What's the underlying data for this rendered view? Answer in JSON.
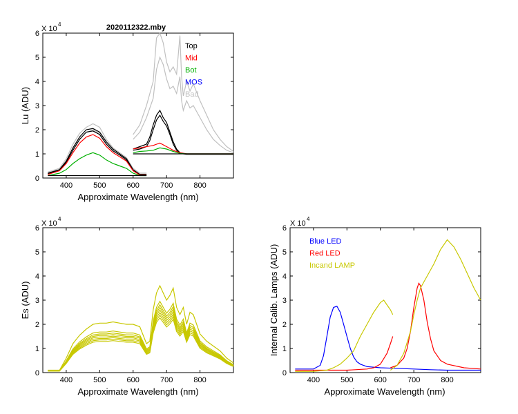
{
  "figure": {
    "title": "2020112322.mby",
    "scale_label": "X 10",
    "scale_exponent": "4"
  },
  "chart_data": [
    {
      "id": "lu",
      "type": "line",
      "xlabel": "Approximate Wavelength (nm)",
      "ylabel": "Lu (ADU)",
      "xlim": [
        330,
        900
      ],
      "ylim": [
        0,
        6
      ],
      "xticks": [
        "400",
        "500",
        "600",
        "700",
        "800"
      ],
      "xtick_values": [
        400,
        500,
        600,
        700,
        800
      ],
      "yticks": [
        "0",
        "1",
        "2",
        "3",
        "4",
        "5",
        "6"
      ],
      "legend": [
        {
          "label": "Top",
          "color": "#000000"
        },
        {
          "label": "Mid",
          "color": "#ff0000"
        },
        {
          "label": "Bot",
          "color": "#00b000"
        },
        {
          "label": "MOS",
          "color": "#0000ff"
        },
        {
          "label": "Bad",
          "color": "#c0c0c0"
        }
      ],
      "series": [
        {
          "name": "Bad",
          "color": "#c0c0c0",
          "seg1": {
            "x": [
              345,
              380,
              400,
              420,
              440,
              460,
              480,
              500,
              520,
              540,
              560,
              580,
              600,
              620,
              640
            ],
            "y": [
              0.25,
              0.4,
              0.8,
              1.4,
              1.85,
              2.1,
              2.25,
              2.1,
              1.6,
              1.25,
              1.05,
              0.85,
              0.4,
              0.2,
              0.2
            ]
          },
          "seg2": {
            "x": [
              600,
              620,
              640,
              660,
              670,
              680,
              690,
              700,
              710,
              720,
              730,
              740,
              745,
              750,
              760,
              770,
              780,
              800,
              820,
              840,
              860,
              880,
              900
            ],
            "y": [
              1.8,
              2.2,
              3.0,
              4.0,
              5.8,
              6.0,
              5.6,
              4.8,
              4.4,
              4.6,
              4.3,
              5.9,
              4.2,
              3.4,
              4.0,
              3.6,
              3.9,
              3.2,
              2.6,
              2.0,
              1.6,
              1.3,
              1.1
            ]
          }
        },
        {
          "name": "Bad",
          "color": "#c0c0c0",
          "seg1": {
            "x": [
              345,
              380,
              400,
              420,
              440,
              460,
              480,
              500,
              520,
              540,
              560,
              580,
              600,
              620,
              640
            ],
            "y": [
              0.22,
              0.35,
              0.7,
              1.2,
              1.6,
              1.9,
              2.0,
              1.85,
              1.45,
              1.15,
              0.95,
              0.75,
              0.35,
              0.2,
              0.2
            ]
          },
          "seg2": {
            "x": [
              600,
              620,
              640,
              660,
              670,
              680,
              690,
              700,
              710,
              720,
              730,
              740,
              745,
              750,
              760,
              770,
              780,
              800,
              820,
              840,
              860,
              880,
              900
            ],
            "y": [
              1.6,
              1.9,
              2.5,
              3.3,
              4.5,
              5.0,
              4.7,
              4.1,
              3.7,
              3.8,
              3.5,
              4.2,
              3.2,
              2.8,
              3.2,
              2.9,
              3.0,
              2.5,
              2.0,
              1.6,
              1.35,
              1.15,
              1.05
            ]
          }
        },
        {
          "name": "Top",
          "color": "#000000",
          "seg1": {
            "x": [
              345,
              380,
              400,
              420,
              440,
              460,
              480,
              500,
              520,
              540,
              560,
              580,
              600,
              620,
              640
            ],
            "y": [
              0.2,
              0.35,
              0.7,
              1.25,
              1.7,
              2.0,
              2.05,
              1.9,
              1.5,
              1.2,
              1.0,
              0.8,
              0.35,
              0.15,
              0.15
            ]
          },
          "seg2": {
            "x": [
              600,
              620,
              640,
              650,
              660,
              670,
              680,
              690,
              700,
              710,
              720,
              730,
              740,
              760,
              780,
              800,
              820,
              840,
              860,
              880,
              900
            ],
            "y": [
              1.2,
              1.3,
              1.4,
              1.7,
              2.2,
              2.6,
              2.8,
              2.5,
              2.3,
              1.9,
              1.5,
              1.2,
              1.05,
              1.0,
              1.0,
              1.0,
              1.0,
              1.0,
              1.0,
              1.0,
              1.0
            ]
          }
        },
        {
          "name": "Top",
          "color": "#000000",
          "seg1": {
            "x": [
              345,
              380,
              400,
              420,
              440,
              460,
              480,
              500,
              520,
              540,
              560,
              580,
              600,
              620,
              640
            ],
            "y": [
              0.18,
              0.32,
              0.65,
              1.15,
              1.6,
              1.9,
              1.95,
              1.8,
              1.4,
              1.12,
              0.95,
              0.75,
              0.32,
              0.15,
              0.15
            ]
          },
          "seg2": {
            "x": [
              600,
              620,
              640,
              650,
              660,
              670,
              680,
              690,
              700,
              710,
              720,
              730,
              740,
              760,
              780,
              800,
              820,
              840,
              860,
              880,
              900
            ],
            "y": [
              1.15,
              1.2,
              1.3,
              1.55,
              2.0,
              2.4,
              2.6,
              2.35,
              2.15,
              1.8,
              1.4,
              1.15,
              1.02,
              0.98,
              0.98,
              0.98,
              0.98,
              0.98,
              0.98,
              0.98,
              0.98
            ]
          }
        },
        {
          "name": "Mid",
          "color": "#ff0000",
          "seg1": {
            "x": [
              345,
              380,
              400,
              420,
              440,
              460,
              480,
              500,
              520,
              540,
              560,
              580,
              600,
              620,
              640
            ],
            "y": [
              0.15,
              0.3,
              0.6,
              1.05,
              1.45,
              1.7,
              1.8,
              1.65,
              1.3,
              1.05,
              0.88,
              0.7,
              0.3,
              0.12,
              0.12
            ]
          },
          "seg2": {
            "x": [
              600,
              620,
              640,
              660,
              680,
              700,
              720,
              740,
              760,
              780,
              800,
              820,
              840,
              860,
              880,
              900
            ],
            "y": [
              1.2,
              1.25,
              1.3,
              1.35,
              1.45,
              1.3,
              1.15,
              1.05,
              1.0,
              1.0,
              1.0,
              1.0,
              1.0,
              1.0,
              1.0,
              1.0
            ]
          }
        },
        {
          "name": "Bot",
          "color": "#00b000",
          "seg1": {
            "x": [
              345,
              380,
              400,
              420,
              440,
              460,
              480,
              500,
              520,
              540,
              560,
              580,
              600,
              620,
              640
            ],
            "y": [
              0.1,
              0.2,
              0.35,
              0.6,
              0.8,
              0.95,
              1.05,
              0.95,
              0.75,
              0.6,
              0.5,
              0.4,
              0.2,
              0.1,
              0.1
            ]
          },
          "seg2": {
            "x": [
              600,
              620,
              640,
              660,
              680,
              700,
              720,
              740,
              760,
              780,
              800,
              820,
              840,
              860,
              880,
              900
            ],
            "y": [
              1.05,
              1.1,
              1.12,
              1.15,
              1.25,
              1.2,
              1.1,
              1.02,
              1.0,
              1.0,
              1.0,
              1.0,
              1.0,
              1.0,
              1.0,
              1.0
            ]
          }
        },
        {
          "name": "Baseline",
          "color": "#000000",
          "seg1": {
            "x": [
              345,
              640
            ],
            "y": [
              0.1,
              0.1
            ]
          },
          "seg2": {
            "x": [
              600,
              900
            ],
            "y": [
              1.0,
              1.0
            ]
          }
        }
      ]
    },
    {
      "id": "es",
      "type": "line",
      "xlabel": "Approximate Wavelength (nm)",
      "ylabel": "Es  (ADU)",
      "xlim": [
        330,
        900
      ],
      "ylim": [
        0,
        6
      ],
      "xticks": [
        "400",
        "500",
        "600",
        "700",
        "800"
      ],
      "xtick_values": [
        400,
        500,
        600,
        700,
        800
      ],
      "yticks": [
        "0",
        "1",
        "2",
        "3",
        "4",
        "5",
        "6"
      ],
      "series": [
        {
          "name": "Es",
          "color": "#c8c800",
          "x": [
            345,
            380,
            400,
            420,
            440,
            460,
            480,
            500,
            520,
            540,
            560,
            580,
            600,
            620,
            640,
            650,
            660,
            670,
            680,
            690,
            700,
            710,
            720,
            730,
            740,
            750,
            760,
            770,
            780,
            800,
            820,
            840,
            860,
            880,
            900
          ],
          "y": [
            0.1,
            0.1,
            0.6,
            1.2,
            1.55,
            1.8,
            2.0,
            2.05,
            2.05,
            2.1,
            2.05,
            2.0,
            2.0,
            1.9,
            1.2,
            1.3,
            2.6,
            3.3,
            3.6,
            3.3,
            3.0,
            3.2,
            3.5,
            2.7,
            2.4,
            2.7,
            2.0,
            2.5,
            2.4,
            1.6,
            1.3,
            1.1,
            0.9,
            0.6,
            0.4
          ],
          "scales": [
            1.0,
            0.82,
            0.78,
            0.75,
            0.72,
            0.69,
            0.66,
            0.63
          ]
        }
      ]
    },
    {
      "id": "cal",
      "type": "line",
      "xlabel": "Approximate Wavelength (nm)",
      "ylabel": "Internal Calib. Lamps  (ADU)",
      "xlim": [
        330,
        900
      ],
      "ylim": [
        0,
        6
      ],
      "xticks": [
        "400",
        "500",
        "600",
        "700",
        "800"
      ],
      "xtick_values": [
        400,
        500,
        600,
        700,
        800
      ],
      "yticks": [
        "0",
        "1",
        "2",
        "3",
        "4",
        "5",
        "6"
      ],
      "legend": [
        {
          "label": "Blue LED",
          "color": "#0000ff"
        },
        {
          "label": "Red LED",
          "color": "#ff0000"
        },
        {
          "label": "Incand LAMP",
          "color": "#c8c800"
        }
      ],
      "series": [
        {
          "name": "Blue LED",
          "color": "#0000ff",
          "x": [
            345,
            400,
            420,
            430,
            440,
            450,
            460,
            470,
            480,
            490,
            500,
            510,
            520,
            530,
            540,
            560,
            600,
            640,
            700,
            750,
            800,
            900
          ],
          "y": [
            0.15,
            0.15,
            0.3,
            0.7,
            1.5,
            2.3,
            2.7,
            2.75,
            2.5,
            2.0,
            1.5,
            1.0,
            0.65,
            0.45,
            0.35,
            0.25,
            0.2,
            0.18,
            0.15,
            0.12,
            0.1,
            0.1
          ]
        },
        {
          "name": "Red LED",
          "color": "#ff0000",
          "seg1": {
            "x": [
              345,
              400,
              500,
              560,
              580,
              600,
              620,
              630,
              637
            ],
            "y": [
              0.1,
              0.1,
              0.1,
              0.15,
              0.2,
              0.35,
              0.8,
              1.2,
              1.5
            ]
          },
          "seg2": {
            "x": [
              630,
              650,
              670,
              680,
              690,
              700,
              710,
              715,
              720,
              730,
              740,
              750,
              760,
              780,
              800,
              850,
              900
            ],
            "y": [
              0.2,
              0.3,
              0.6,
              1.0,
              1.7,
              2.7,
              3.5,
              3.7,
              3.6,
              3.0,
              2.1,
              1.4,
              0.9,
              0.5,
              0.35,
              0.2,
              0.15
            ]
          }
        },
        {
          "name": "Incand LAMP",
          "color": "#c8c800",
          "seg1": {
            "x": [
              345,
              400,
              440,
              460,
              480,
              500,
              520,
              530,
              540,
              560,
              580,
              600,
              610,
              620,
              630,
              637
            ],
            "y": [
              0.05,
              0.05,
              0.1,
              0.2,
              0.35,
              0.6,
              0.9,
              1.2,
              1.5,
              2.0,
              2.5,
              2.9,
              3.0,
              2.8,
              2.6,
              2.4
            ]
          },
          "seg2": {
            "x": [
              630,
              650,
              670,
              690,
              700,
              710,
              720,
              740,
              760,
              780,
              800,
              820,
              840,
              860,
              880,
              900
            ],
            "y": [
              0.1,
              0.3,
              0.8,
              1.7,
              2.4,
              3.0,
              3.5,
              4.0,
              4.5,
              5.1,
              5.5,
              5.2,
              4.7,
              4.1,
              3.5,
              3.0
            ]
          }
        }
      ]
    }
  ]
}
